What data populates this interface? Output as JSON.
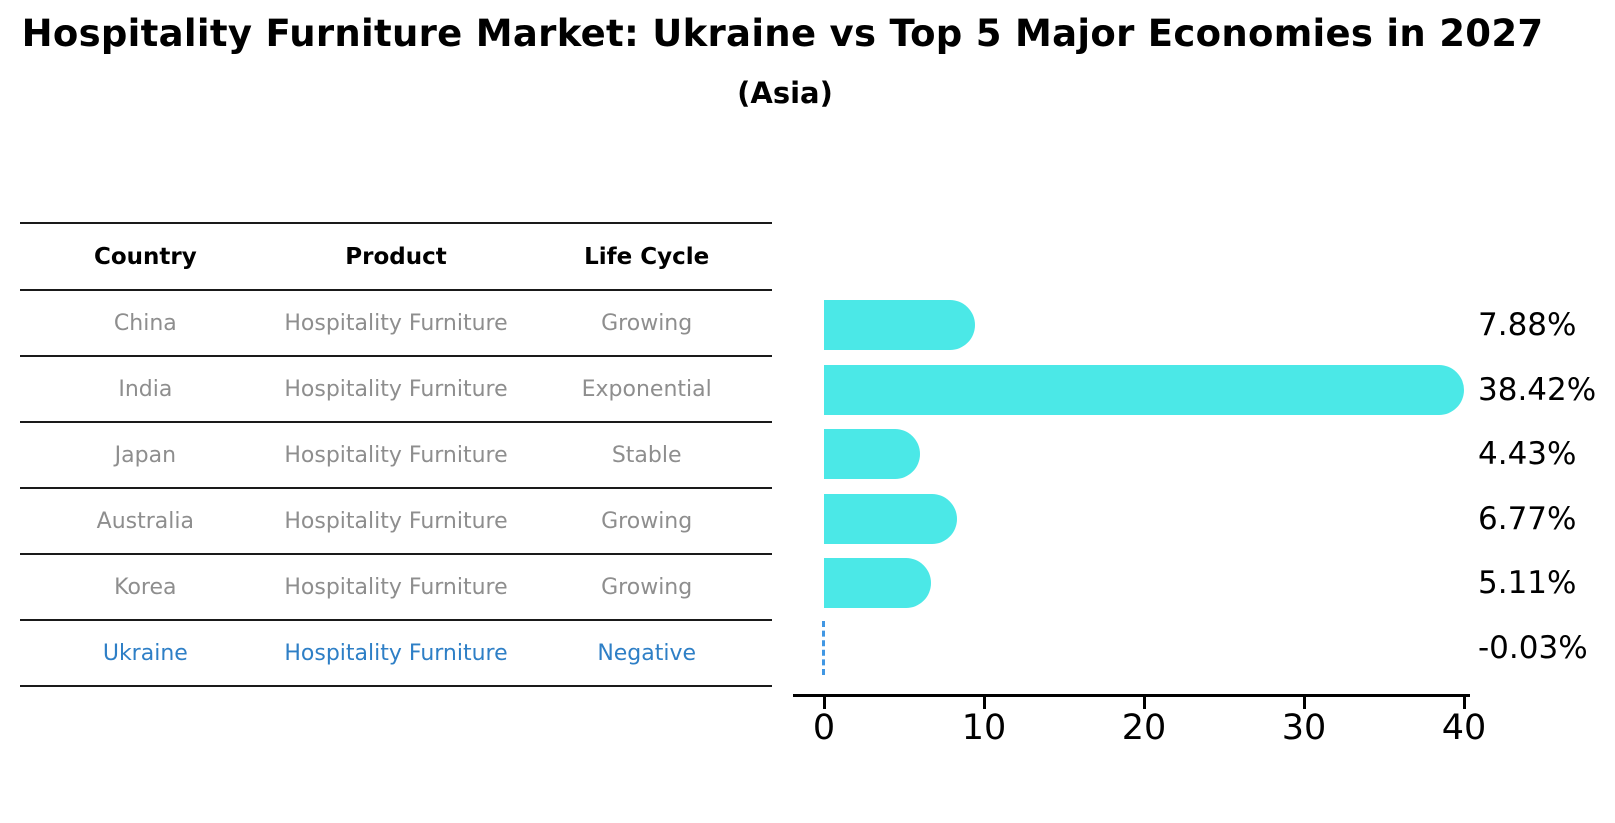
{
  "chart_data": {
    "type": "bar",
    "orientation": "horizontal",
    "title": "Hospitality Furniture Market: Ukraine vs Top 5 Major Economies in 2027",
    "subtitle": "(Asia)",
    "categories": [
      "China",
      "India",
      "Japan",
      "Australia",
      "Korea",
      "Ukraine"
    ],
    "values": [
      7.88,
      38.42,
      4.43,
      6.77,
      5.11,
      -0.03
    ],
    "value_labels": [
      "7.88%",
      "38.42%",
      "4.43%",
      "6.77%",
      "5.11%",
      "-0.03%"
    ],
    "x_ticks": [
      "0",
      "10",
      "20",
      "30",
      "40"
    ],
    "xlim": [
      0,
      40
    ],
    "grid": false,
    "legend": "none",
    "bar_color": "#4BE8E7",
    "negative_bar_style": "dashed-blue-line-at-zero"
  },
  "table": {
    "columns": [
      {
        "label": "Country"
      },
      {
        "label": "Product"
      },
      {
        "label": "Life Cycle"
      }
    ],
    "rows": [
      {
        "country": "China",
        "product": "Hospitality Furniture",
        "life_cycle": "Growing",
        "highlight": false
      },
      {
        "country": "India",
        "product": "Hospitality Furniture",
        "life_cycle": "Exponential",
        "highlight": false
      },
      {
        "country": "Japan",
        "product": "Hospitality Furniture",
        "life_cycle": "Stable",
        "highlight": false
      },
      {
        "country": "Australia",
        "product": "Hospitality Furniture",
        "life_cycle": "Growing",
        "highlight": false
      },
      {
        "country": "Korea",
        "product": "Hospitality Furniture",
        "life_cycle": "Growing",
        "highlight": false
      },
      {
        "country": "Ukraine",
        "product": "Hospitality Furniture",
        "life_cycle": "Negative",
        "highlight": true
      }
    ]
  },
  "colors": {
    "bar_cyan": "#4BE8E7",
    "highlight_blue": "#2E7FC6",
    "dash_blue": "#4197E3",
    "cell_gray": "#8E8E8E",
    "line_black": "#1a1a1a",
    "label_black": "#000000"
  }
}
